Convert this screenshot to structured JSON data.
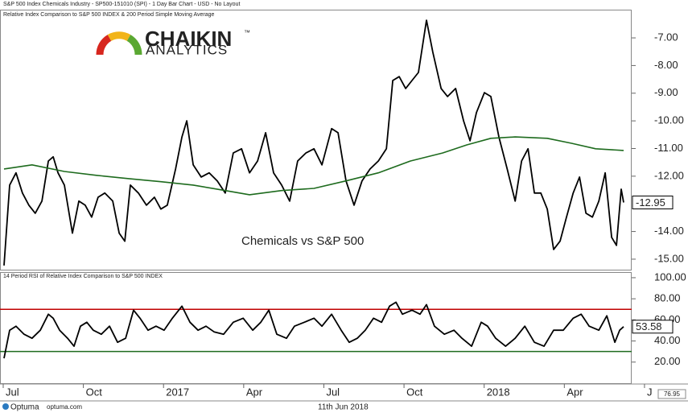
{
  "header": {
    "title": "S&P 500 Index Chemicals Industry - SP500-151010 (SPI) - 1 Day Bar Chart - USD - No Layout"
  },
  "logo": {
    "name": "CHAIKIN",
    "mark": "™",
    "sub": "ANALYTICS"
  },
  "chart_data": [
    {
      "type": "line",
      "title": "Relative Index Comparison to S&P 500 INDEX & 200 Period Simple Moving Average",
      "annotation": "Chemicals vs S&P 500",
      "xlim": [
        -0.12,
        23.52
      ],
      "ylim": [
        -15.38,
        -5.98
      ],
      "yticks": [
        {
          "value": -7,
          "label": "-7.00"
        },
        {
          "value": -8,
          "label": "-8.00"
        },
        {
          "value": -9,
          "label": "-9.00"
        },
        {
          "value": -10,
          "label": "-10.00"
        },
        {
          "value": -11,
          "label": "-11.00"
        },
        {
          "value": -12,
          "label": "-12.00"
        },
        {
          "value": -14,
          "label": "-14.00"
        },
        {
          "value": -15,
          "label": "-15.00"
        }
      ],
      "series": [
        {
          "name": "Relative Index",
          "color": "#000000",
          "last_label": "-12.95",
          "x": [
            0.03,
            0.24,
            0.48,
            0.72,
            0.96,
            1.2,
            1.45,
            1.69,
            1.87,
            2.05,
            2.29,
            2.59,
            2.83,
            3.07,
            3.31,
            3.55,
            3.8,
            4.1,
            4.34,
            4.55,
            4.76,
            5.06,
            5.36,
            5.66,
            5.9,
            6.14,
            6.45,
            6.69,
            6.87,
            7.11,
            7.41,
            7.71,
            8.01,
            8.31,
            8.61,
            8.92,
            9.22,
            9.52,
            9.82,
            10.12,
            10.42,
            10.72,
            11.02,
            11.33,
            11.63,
            11.93,
            12.29,
            12.53,
            12.83,
            13.13,
            13.43,
            13.73,
            14.04,
            14.34,
            14.58,
            14.82,
            15.06,
            15.3,
            15.54,
            15.84,
            16.08,
            16.39,
            16.63,
            16.93,
            17.23,
            17.47,
            17.71,
            18.01,
            18.25,
            18.55,
            18.86,
            19.16,
            19.4,
            19.64,
            19.88,
            20.12,
            20.36,
            20.6,
            20.84,
            21.08,
            21.33,
            21.57,
            21.81,
            22.05,
            22.29,
            22.53,
            22.77,
            22.95,
            23.13,
            23.22
          ],
          "values": [
            -15.23,
            -12.32,
            -11.88,
            -12.61,
            -13.05,
            -13.34,
            -12.9,
            -11.45,
            -11.3,
            -11.88,
            -12.32,
            -14.06,
            -12.9,
            -13.05,
            -13.48,
            -12.76,
            -12.61,
            -12.9,
            -14.06,
            -14.35,
            -12.32,
            -12.61,
            -13.05,
            -12.76,
            -13.19,
            -13.05,
            -11.74,
            -10.58,
            -10.0,
            -11.59,
            -12.03,
            -11.88,
            -12.17,
            -12.61,
            -11.16,
            -11.01,
            -11.88,
            -11.45,
            -10.43,
            -11.88,
            -12.32,
            -12.9,
            -11.45,
            -11.16,
            -11.01,
            -11.59,
            -10.28,
            -10.43,
            -12.17,
            -13.05,
            -12.17,
            -11.74,
            -11.45,
            -11.01,
            -8.54,
            -8.4,
            -8.83,
            -8.54,
            -8.25,
            -6.36,
            -7.52,
            -8.83,
            -9.12,
            -8.83,
            -10.0,
            -10.72,
            -9.7,
            -8.98,
            -9.12,
            -10.58,
            -11.74,
            -12.9,
            -11.45,
            -11.01,
            -12.61,
            -12.61,
            -13.19,
            -14.65,
            -14.35,
            -13.48,
            -12.61,
            -12.03,
            -13.34,
            -13.48,
            -12.9,
            -11.88,
            -14.21,
            -14.5,
            -12.47,
            -12.95
          ]
        },
        {
          "name": "200 Period Simple Moving Average",
          "color": "#1e6b1e",
          "x": [
            0.03,
            1.08,
            2.29,
            3.49,
            4.7,
            5.9,
            7.11,
            8.31,
            9.22,
            10.42,
            11.63,
            12.83,
            14.04,
            15.24,
            16.45,
            17.35,
            18.25,
            19.16,
            20.36,
            21.27,
            22.17,
            23.22
          ],
          "values": [
            -11.74,
            -11.59,
            -11.83,
            -11.97,
            -12.09,
            -12.2,
            -12.32,
            -12.52,
            -12.67,
            -12.52,
            -12.44,
            -12.17,
            -11.88,
            -11.45,
            -11.16,
            -10.87,
            -10.63,
            -10.58,
            -10.63,
            -10.81,
            -11.01,
            -11.07
          ]
        }
      ]
    },
    {
      "type": "line",
      "title": "14 Period RSI of Relative Index Comparison to S&P 500 INDEX",
      "xlim": [
        -0.12,
        23.52
      ],
      "ylim": [
        0,
        105.3
      ],
      "yticks": [
        {
          "value": 100,
          "label": "100.00"
        },
        {
          "value": 80,
          "label": "80.00"
        },
        {
          "value": 60,
          "label": "60.00"
        },
        {
          "value": 40,
          "label": "40.00"
        },
        {
          "value": 20,
          "label": "20.00"
        }
      ],
      "xticks": [
        {
          "value": 0,
          "label": "Jul"
        },
        {
          "value": 3,
          "label": "Oct"
        },
        {
          "value": 6,
          "label": "2017"
        },
        {
          "value": 9,
          "label": "Apr"
        },
        {
          "value": 12,
          "label": "Jul"
        },
        {
          "value": 15,
          "label": "Oct"
        },
        {
          "value": 18,
          "label": "2018"
        },
        {
          "value": 21,
          "label": "Apr"
        },
        {
          "value": 24,
          "label": "J"
        }
      ],
      "levels": [
        {
          "value": 70,
          "color": "#c00000"
        },
        {
          "value": 30,
          "color": "#1e6b1e"
        }
      ],
      "series": [
        {
          "name": "RSI",
          "color": "#000000",
          "last_label": "53.58",
          "x": [
            0.03,
            0.24,
            0.48,
            0.78,
            1.08,
            1.39,
            1.69,
            1.87,
            2.11,
            2.41,
            2.65,
            2.89,
            3.13,
            3.37,
            3.67,
            3.98,
            4.28,
            4.58,
            4.88,
            5.12,
            5.42,
            5.72,
            6.02,
            6.33,
            6.69,
            6.99,
            7.29,
            7.59,
            7.89,
            8.25,
            8.61,
            8.98,
            9.34,
            9.64,
            9.94,
            10.24,
            10.6,
            10.9,
            11.27,
            11.63,
            11.93,
            12.29,
            12.65,
            12.95,
            13.25,
            13.55,
            13.86,
            14.16,
            14.46,
            14.7,
            14.94,
            15.3,
            15.6,
            15.84,
            16.14,
            16.51,
            16.87,
            17.17,
            17.53,
            17.89,
            18.13,
            18.43,
            18.8,
            19.16,
            19.52,
            19.88,
            20.24,
            20.6,
            20.96,
            21.33,
            21.63,
            21.93,
            22.29,
            22.59,
            22.89,
            23.07,
            23.22
          ],
          "values": [
            23.6,
            50.2,
            54.0,
            46.4,
            42.6,
            50.2,
            65.4,
            61.6,
            50.2,
            42.6,
            35.0,
            54.0,
            57.8,
            50.2,
            46.4,
            54.0,
            38.8,
            42.6,
            69.2,
            61.6,
            50.2,
            54.0,
            50.2,
            61.6,
            73.0,
            57.8,
            50.2,
            54.0,
            48.7,
            46.4,
            57.8,
            61.6,
            50.2,
            57.8,
            69.2,
            46.4,
            42.6,
            54.0,
            57.8,
            61.6,
            54.0,
            65.4,
            50.2,
            38.8,
            42.6,
            50.2,
            61.6,
            57.8,
            73.0,
            76.8,
            65.4,
            69.2,
            65.4,
            74.5,
            54.0,
            46.4,
            50.2,
            42.6,
            35.0,
            57.8,
            54.0,
            42.6,
            35.0,
            42.6,
            54.0,
            38.8,
            35.0,
            50.2,
            50.2,
            61.6,
            65.4,
            54.0,
            50.2,
            63.9,
            38.8,
            50.2,
            53.58
          ]
        }
      ]
    }
  ],
  "footer": {
    "brand": "Optuma",
    "site": "optuma.com",
    "date": "11th Jun 2018",
    "box": "76.95"
  }
}
